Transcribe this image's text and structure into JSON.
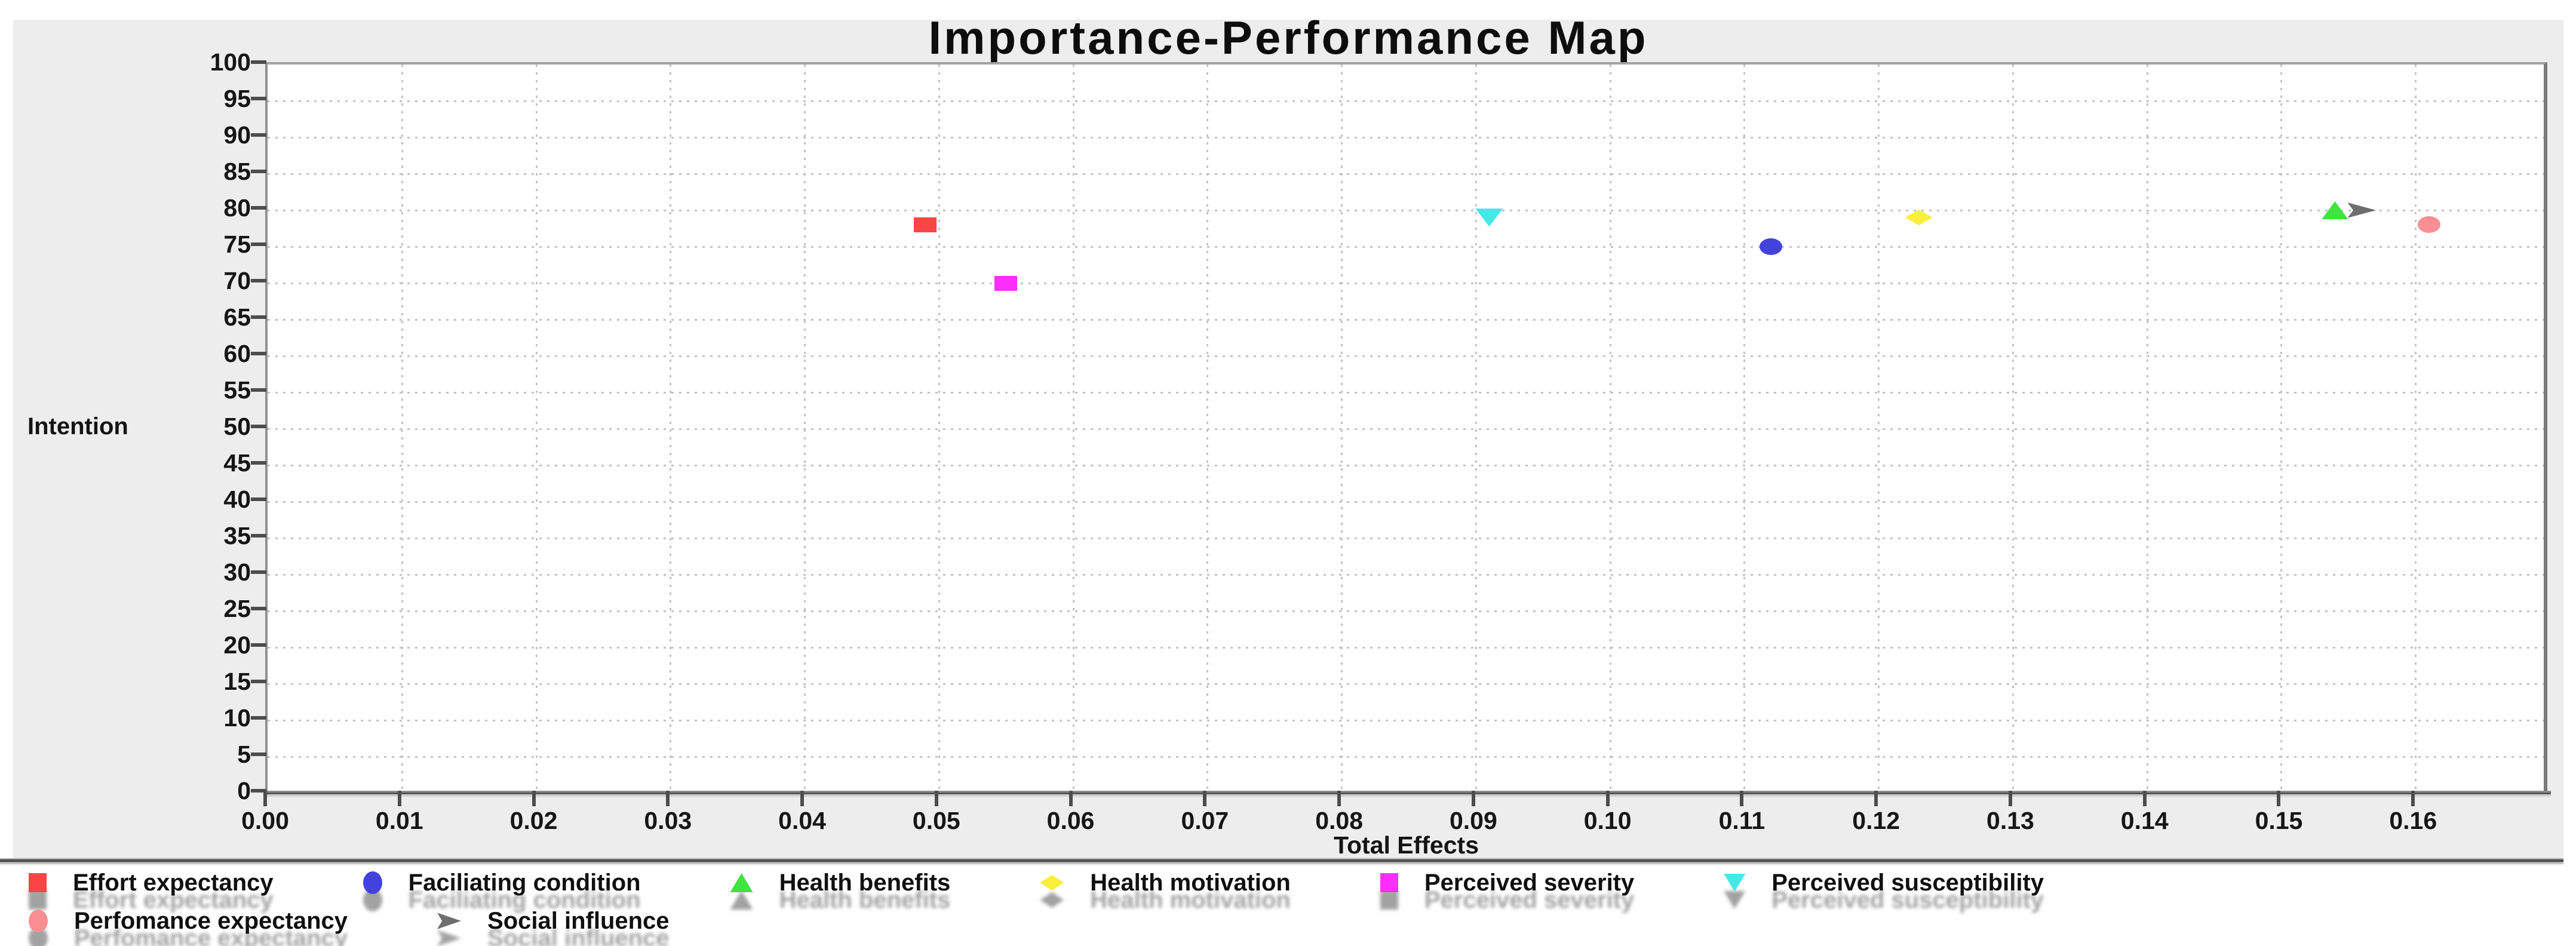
{
  "title": "Importance-Performance Map",
  "window": {
    "background": "#ffffff",
    "panel_background": "#ededed",
    "plot_background": "#ffffff",
    "gridline_color": "#c3c3c3",
    "text_color": "#141414"
  },
  "chart_data": {
    "type": "scatter",
    "title": "Importance-Performance Map",
    "xlabel": "Total Effects",
    "ylabel": "Intention",
    "xlim": [
      0,
      0.17
    ],
    "ylim": [
      0,
      100
    ],
    "x_tick_labels": [
      "0.00",
      "0.01",
      "0.02",
      "0.03",
      "0.04",
      "0.05",
      "0.06",
      "0.07",
      "0.08",
      "0.09",
      "0.10",
      "0.11",
      "0.12",
      "0.13",
      "0.14",
      "0.15",
      "0.16"
    ],
    "y_tick_step": 5,
    "grid": "dotted",
    "legend_position": "bottom",
    "series": [
      {
        "name": "Effort expectancy",
        "marker": "square",
        "color": "#f94545",
        "x": 0.049,
        "y": 78
      },
      {
        "name": "Faciliating condition",
        "marker": "circle",
        "color": "#4343dc",
        "x": 0.112,
        "y": 75
      },
      {
        "name": "Health benefits",
        "marker": "triangle-up",
        "color": "#3fe43f",
        "x": 0.154,
        "y": 80
      },
      {
        "name": "Health motivation",
        "marker": "diamond",
        "color": "#f8ef3b",
        "x": 0.123,
        "y": 79
      },
      {
        "name": "Perceived severity",
        "marker": "square",
        "color": "#fb2efb",
        "x": 0.055,
        "y": 70
      },
      {
        "name": "Perceived susceptibility",
        "marker": "triangle-down",
        "color": "#45e7e7",
        "x": 0.091,
        "y": 79
      },
      {
        "name": "Perfomance expectancy",
        "marker": "circle",
        "color": "#fb8e92",
        "x": 0.161,
        "y": 78
      },
      {
        "name": "Social influence",
        "marker": "arrow-right",
        "color": "#6e6e6e",
        "x": 0.156,
        "y": 80
      }
    ],
    "legend_rows": [
      [
        0,
        1,
        2,
        3,
        4,
        5
      ],
      [
        6,
        7
      ]
    ]
  }
}
